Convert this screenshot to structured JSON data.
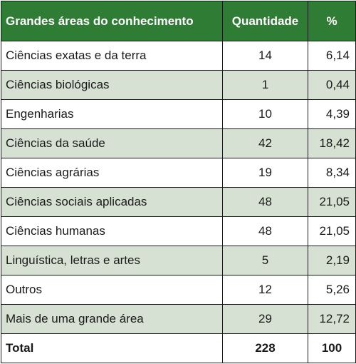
{
  "header": {
    "area": "Grandes áreas do conhecimento",
    "quantity": "Quantidade",
    "percent": "%"
  },
  "rows": [
    {
      "area": "Ciências exatas e da terra",
      "quantity": "14",
      "percent": "6,14"
    },
    {
      "area": "Ciências biológicas",
      "quantity": "1",
      "percent": "0,44"
    },
    {
      "area": "Engenharias",
      "quantity": "10",
      "percent": "4,39"
    },
    {
      "area": "Ciências da saúde",
      "quantity": "42",
      "percent": "18,42"
    },
    {
      "area": "Ciências agrárias",
      "quantity": "19",
      "percent": "8,34"
    },
    {
      "area": "Ciências sociais aplicadas",
      "quantity": "48",
      "percent": "21,05"
    },
    {
      "area": "Ciências humanas",
      "quantity": "48",
      "percent": "21,05"
    },
    {
      "area": "Linguística, letras e artes",
      "quantity": "5",
      "percent": "2,19"
    },
    {
      "area": "Outros",
      "quantity": "12",
      "percent": "5,26"
    },
    {
      "area": "Mais de uma grande área",
      "quantity": "29",
      "percent": "12,72"
    }
  ],
  "total": {
    "label": "Total",
    "quantity": "228",
    "percent": "100"
  },
  "colors": {
    "header_bg": "#2f7d34",
    "header_text": "#ffffff",
    "shaded_row": "#d7e1d3"
  }
}
